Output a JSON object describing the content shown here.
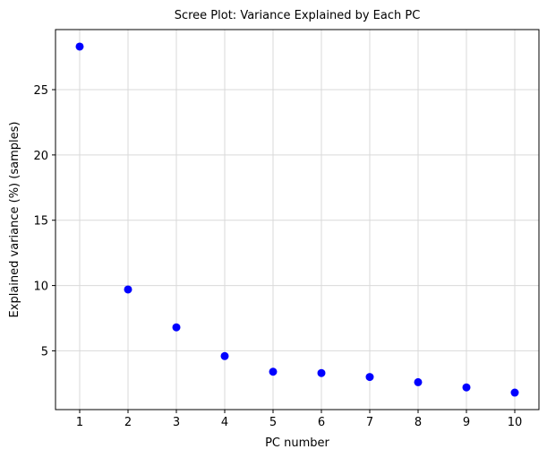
{
  "chart_data": {
    "type": "scatter",
    "title": "Scree Plot: Variance Explained by Each PC",
    "xlabel": "PC number",
    "ylabel": "Explained variance (%) (samples)",
    "x": [
      1,
      2,
      3,
      4,
      5,
      6,
      7,
      8,
      9,
      10
    ],
    "y": [
      28.3,
      9.7,
      6.8,
      4.6,
      3.4,
      3.3,
      3.0,
      2.6,
      2.2,
      1.8
    ],
    "xticks": [
      1,
      2,
      3,
      4,
      5,
      6,
      7,
      8,
      9,
      10
    ],
    "yticks": [
      5,
      10,
      15,
      20,
      25
    ],
    "xlim": [
      0.5,
      10.5
    ],
    "ylim": [
      0.5,
      29.6
    ],
    "grid": true,
    "marker_color": "#0000ff",
    "grid_color": "#d9d9d9"
  }
}
